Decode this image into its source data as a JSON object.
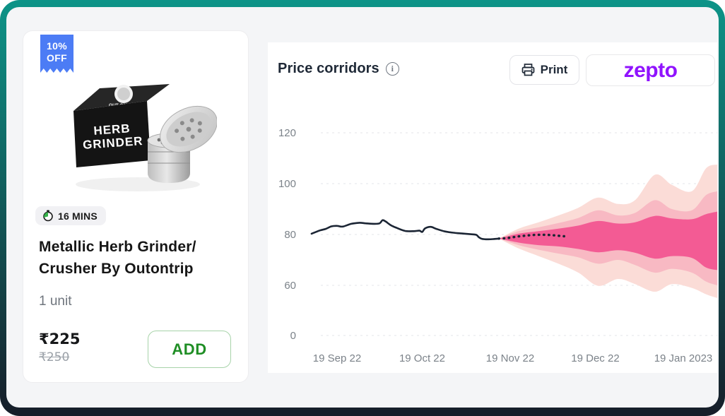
{
  "colors": {
    "teal_top": "#0D9488",
    "navy_bottom": "#161D29",
    "badge_blue": "#4C7CF5",
    "add_green": "#1F8E25",
    "zepto_purple": "#9013FE",
    "line_dark": "#1B2534",
    "band_inner": "#F35B94",
    "band_mid": "#F8B9C3",
    "band_outer": "#FBDCD7"
  },
  "product_card": {
    "discount_badge": {
      "line1": "10%",
      "line2": "OFF"
    },
    "image": {
      "box_text_line1": "HERB",
      "box_text_line2": "GRINDER",
      "box_brand": "OUT ON TRIP"
    },
    "delivery_badge": {
      "label": "16 MINS"
    },
    "title_line1": "Metallic Herb Grinder/",
    "title_line2": "Crusher By Outontrip",
    "quantity": "1 unit",
    "price": "₹225",
    "original_price": "₹250",
    "add_button_label": "ADD"
  },
  "chart_panel": {
    "title": "Price corridors",
    "print_button": {
      "label": "Print"
    },
    "brand_logo": {
      "label": "zepto"
    }
  },
  "chart_data": {
    "type": "area",
    "title": "Price corridors",
    "xlabel": "",
    "ylabel": "",
    "grid": "dashed-horizontal",
    "legend": "none",
    "y_ticks": [
      120,
      100,
      80,
      60,
      0
    ],
    "x_ticks": [
      {
        "label": "19 Sep 22",
        "day": 0
      },
      {
        "label": "19 Oct 22",
        "day": 30
      },
      {
        "label": "19 Nov 22",
        "day": 61
      },
      {
        "label": "19 Dec 22",
        "day": 91
      },
      {
        "label": "19 Jan 2023",
        "day": 122
      }
    ],
    "series": [
      {
        "name": "corridor-outer",
        "style": "band",
        "color": "#FBDCD7",
        "days": [
          57,
          64,
          71,
          78,
          85,
          92,
          99,
          105,
          112,
          118,
          125,
          130,
          134
        ],
        "hi": [
          78.4,
          82.3,
          84.8,
          87.5,
          90.5,
          94.5,
          92.0,
          93.5,
          103.5,
          99.5,
          97.0,
          106.0,
          107.5
        ],
        "lo": [
          78.4,
          74.5,
          71.5,
          68.5,
          65.0,
          59.8,
          62.5,
          60.5,
          57.5,
          60.5,
          59.0,
          56.5,
          55.0
        ]
      },
      {
        "name": "corridor-mid",
        "style": "band",
        "color": "#F8B9C3",
        "days": [
          57,
          64,
          71,
          78,
          85,
          92,
          99,
          105,
          112,
          118,
          125,
          130,
          134
        ],
        "hi": [
          78.4,
          81.3,
          82.8,
          84.5,
          86.5,
          89.5,
          87.5,
          88.5,
          93.5,
          90.0,
          89.5,
          95.5,
          97.0
        ],
        "lo": [
          78.4,
          75.8,
          74.0,
          72.5,
          71.0,
          68.5,
          70.0,
          68.0,
          65.0,
          66.5,
          65.0,
          61.5,
          60.0
        ]
      },
      {
        "name": "corridor-inner",
        "style": "band",
        "color": "#F35B94",
        "days": [
          57,
          64,
          71,
          78,
          85,
          92,
          99,
          105,
          112,
          118,
          125,
          130,
          134
        ],
        "hi": [
          78.4,
          80.3,
          81.3,
          82.3,
          83.5,
          85.3,
          84.3,
          84.8,
          87.3,
          86.3,
          86.0,
          88.0,
          89.0
        ],
        "lo": [
          78.4,
          76.8,
          75.8,
          75.3,
          74.3,
          73.0,
          73.8,
          72.8,
          70.5,
          71.5,
          70.8,
          67.0,
          66.0
        ]
      },
      {
        "name": "historical-price",
        "style": "solid-line",
        "color": "#1B2534",
        "points": [
          [
            -9,
            80.3
          ],
          [
            -6,
            81.6
          ],
          [
            -4,
            82.2
          ],
          [
            -2,
            83.2
          ],
          [
            0,
            83.4
          ],
          [
            2,
            83.1
          ],
          [
            5,
            84.2
          ],
          [
            8,
            84.6
          ],
          [
            10,
            84.4
          ],
          [
            13,
            84.2
          ],
          [
            15,
            84.4
          ],
          [
            16,
            85.6
          ],
          [
            17,
            85.2
          ],
          [
            19,
            83.6
          ],
          [
            21,
            82.6
          ],
          [
            24,
            81.4
          ],
          [
            27,
            81.3
          ],
          [
            29,
            81.5
          ],
          [
            30,
            81.0
          ],
          [
            31,
            82.4
          ],
          [
            33,
            83.0
          ],
          [
            35,
            82.2
          ],
          [
            38,
            81.2
          ],
          [
            41,
            80.7
          ],
          [
            44,
            80.4
          ],
          [
            47,
            80.1
          ],
          [
            49,
            79.9
          ],
          [
            50,
            78.9
          ],
          [
            51,
            78.3
          ],
          [
            53,
            78.1
          ],
          [
            55,
            78.2
          ],
          [
            57,
            78.4
          ]
        ]
      },
      {
        "name": "forecast-median",
        "style": "dotted-line",
        "color": "#1B2534",
        "points": [
          [
            57,
            78.4
          ],
          [
            60,
            78.6
          ],
          [
            63,
            79.1
          ],
          [
            66,
            79.5
          ],
          [
            69,
            79.8
          ],
          [
            72,
            79.9
          ],
          [
            75,
            79.8
          ],
          [
            78,
            79.5
          ],
          [
            80,
            79.3
          ]
        ]
      }
    ]
  }
}
